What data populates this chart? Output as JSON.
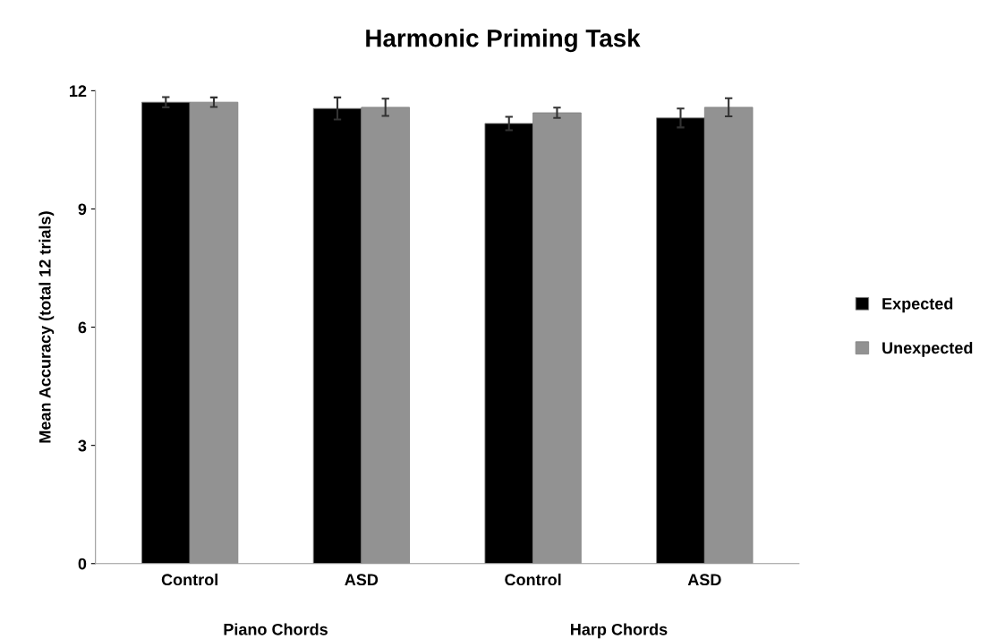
{
  "chart_data": {
    "type": "bar",
    "title": "Harmonic Priming Task",
    "ylabel": "Mean Accuracy (total 12 trials)",
    "categories": [
      "Control",
      "ASD",
      "Control",
      "ASD"
    ],
    "series": [
      {
        "name": "Expected",
        "color": "#000000",
        "values": [
          11.71,
          11.55,
          11.17,
          11.31
        ],
        "errors": [
          0.13,
          0.28,
          0.17,
          0.24
        ]
      },
      {
        "name": "Unexpected",
        "color": "#929292",
        "values": [
          11.71,
          11.58,
          11.44,
          11.58
        ],
        "errors": [
          0.12,
          0.22,
          0.13,
          0.23
        ]
      }
    ],
    "annotations": [
      "Piano Chords",
      "Harp Chords"
    ],
    "ylim": [
      0,
      12
    ],
    "yticks": [
      0,
      3,
      6,
      9,
      12
    ],
    "grid": false,
    "legend": "right"
  }
}
